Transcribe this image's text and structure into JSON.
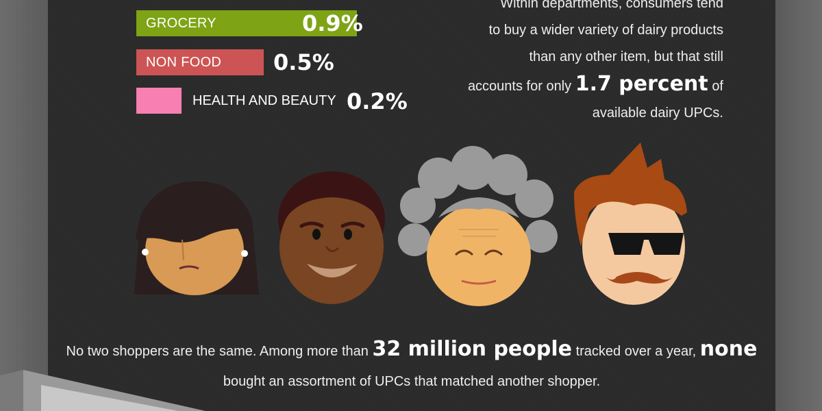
{
  "bars": [
    {
      "label": "GROCERY",
      "value": "0.9%",
      "color": "#7ea415"
    },
    {
      "label": "NON FOOD",
      "value": "0.5%",
      "color": "#cd5454"
    },
    {
      "label": "HEALTH AND BEAUTY",
      "value": "0.2%",
      "color": "#f77fb2"
    }
  ],
  "note": {
    "line1": "Within departments, consumers tend",
    "line2": "to buy a wider variety of dairy products",
    "line3": "than any other item, but that still",
    "line4_pre": "accounts for only",
    "line4_big": "1.7 percent",
    "line4_post": "of",
    "line5": "available dairy UPCs."
  },
  "caption": {
    "pre": "No two shoppers are the same. Among more than",
    "big1": "32 million people",
    "mid": "tracked over a year,",
    "big2": "none",
    "line2": "bought an assortment of UPCs that matched another shopper."
  },
  "faces": [
    "woman-face-icon",
    "man-face-icon",
    "grandma-face-icon",
    "hipster-face-icon"
  ]
}
